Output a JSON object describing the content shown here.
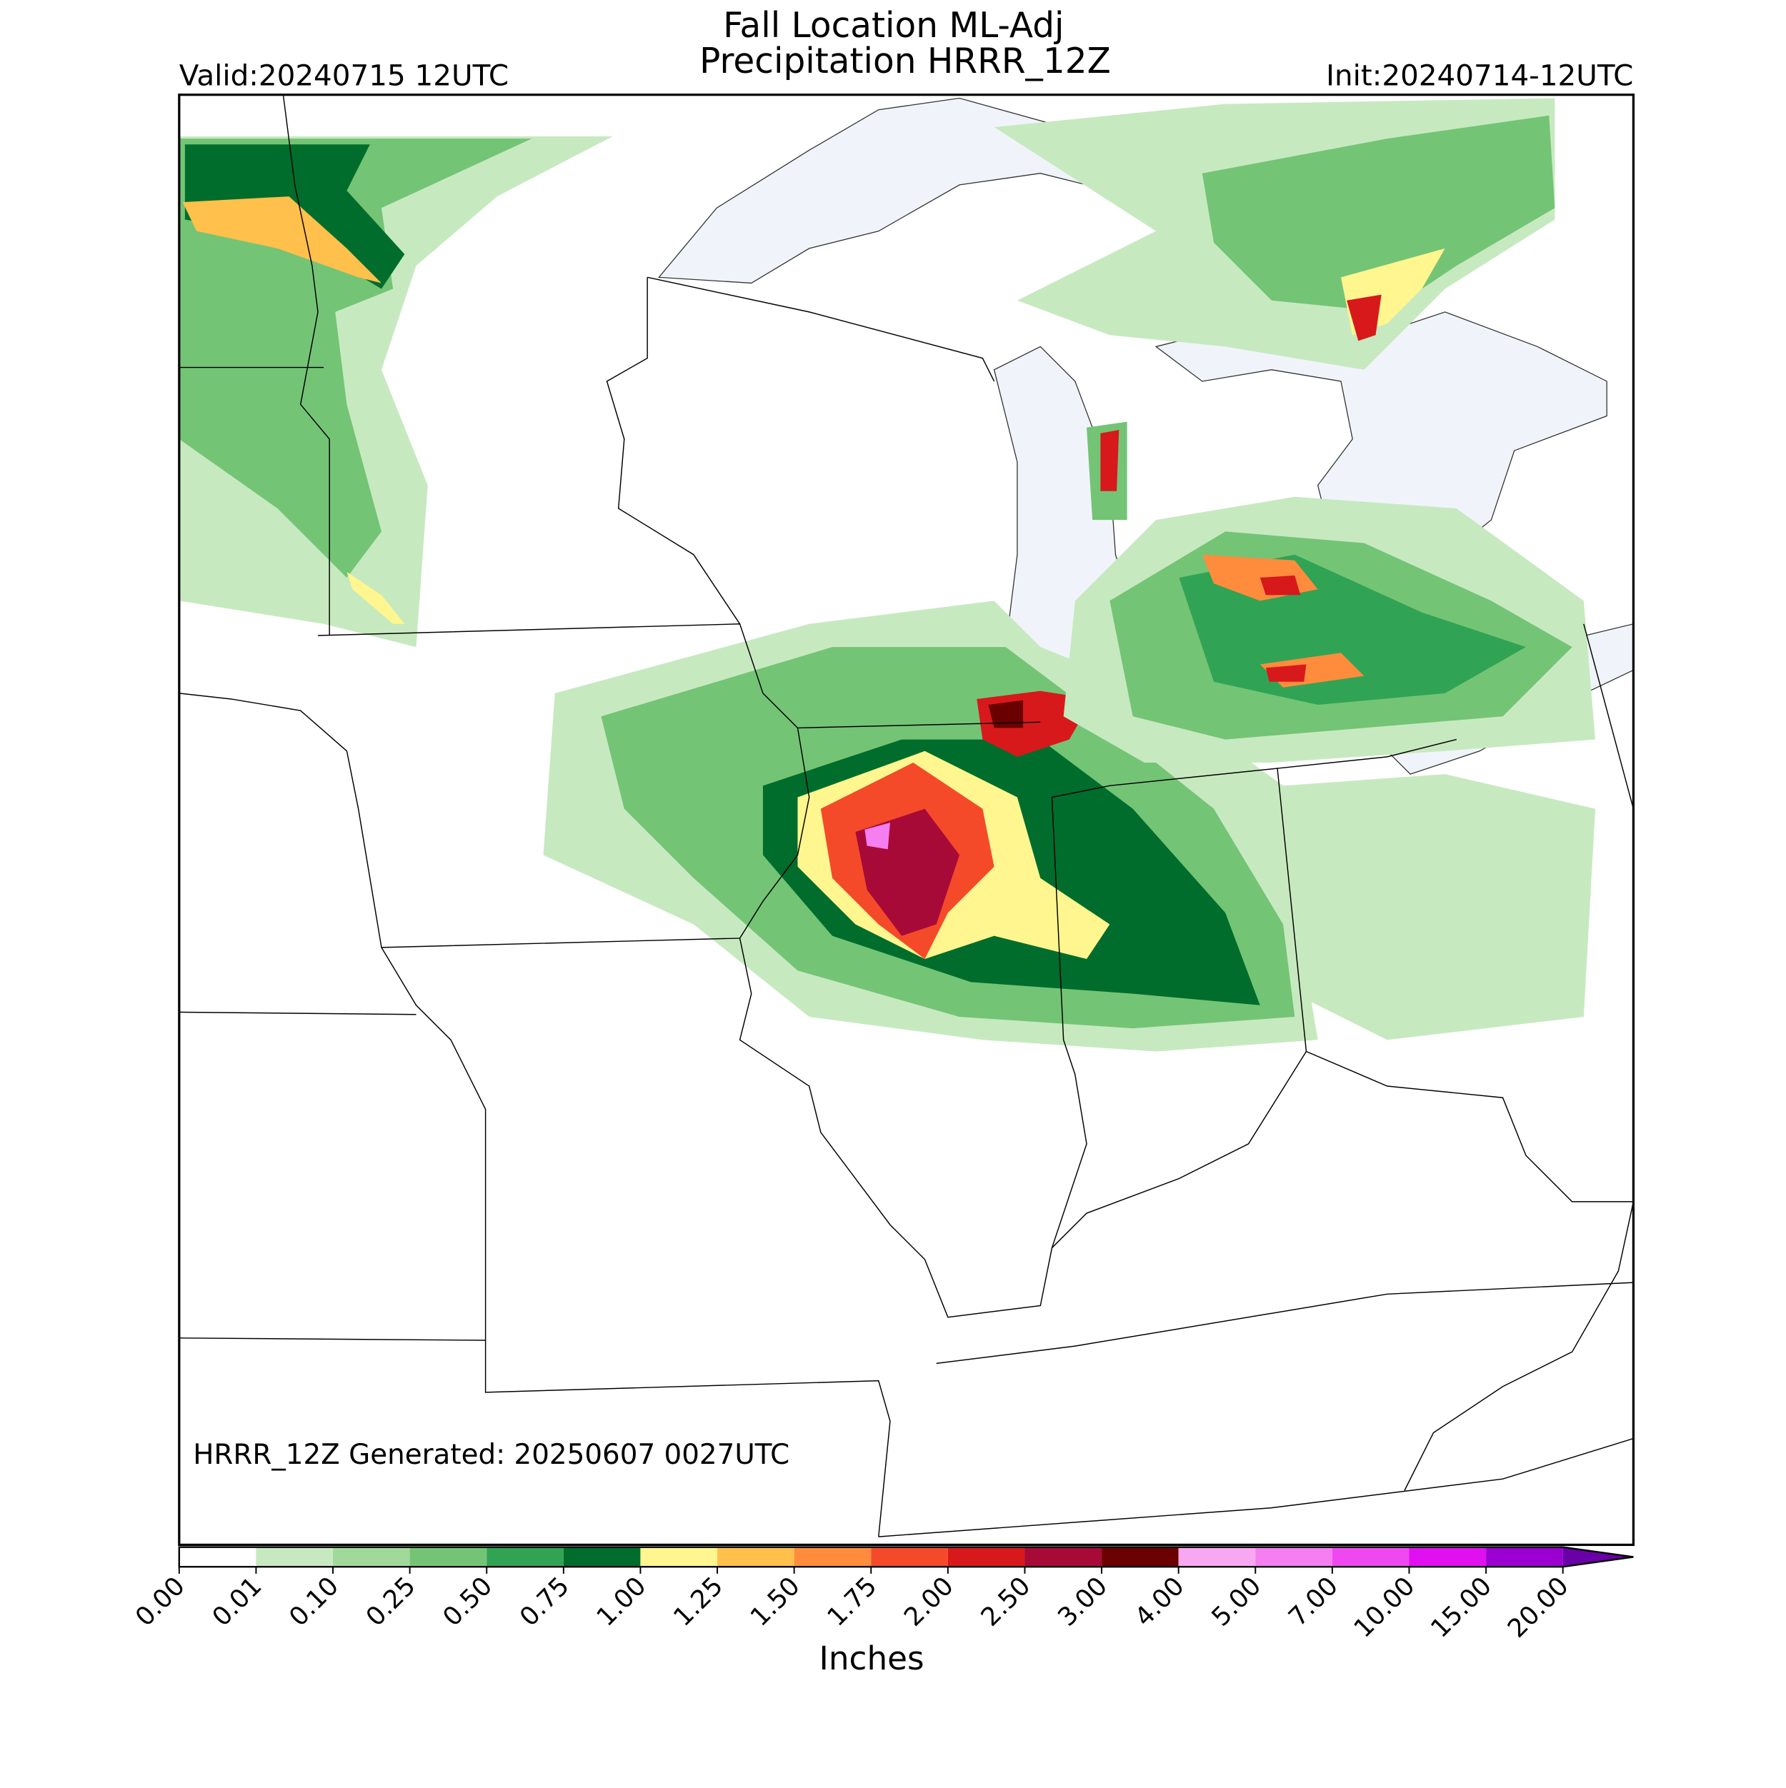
{
  "title_line1": "Fall Location ML-Adj",
  "title_line2": "Precipitation HRRR_12Z",
  "valid": "Valid:20240715 12UTC",
  "init": "Init:20240714-12UTC",
  "generated": "HRRR_12Z Generated: 20250607 0027UTC",
  "colorbar": {
    "label": "Inches",
    "ticks": [
      {
        "value": 0,
        "label": "0.00"
      },
      {
        "value": 0.01,
        "label": "0.01"
      },
      {
        "value": 0.1,
        "label": "0.10"
      },
      {
        "value": 0.25,
        "label": "0.25"
      },
      {
        "value": 0.5,
        "label": "0.50"
      },
      {
        "value": 0.75,
        "label": "0.75"
      },
      {
        "value": 1,
        "label": "1.00"
      },
      {
        "value": 1.25,
        "label": "1.25"
      },
      {
        "value": 1.5,
        "label": "1.50"
      },
      {
        "value": 1.75,
        "label": "1.75"
      },
      {
        "value": 2,
        "label": "2.00"
      },
      {
        "value": 2.5,
        "label": "2.50"
      },
      {
        "value": 3,
        "label": "3.00"
      },
      {
        "value": 4,
        "label": "4.00"
      },
      {
        "value": 5,
        "label": "5.00"
      },
      {
        "value": 7,
        "label": "7.00"
      },
      {
        "value": 10,
        "label": "10.00"
      },
      {
        "value": 15,
        "label": "15.00"
      },
      {
        "value": 20,
        "label": "20.00"
      }
    ],
    "colors": [
      "#ffffff",
      "#c7e9c0",
      "#a1d99b",
      "#74c476",
      "#31a354",
      "#006d2c",
      "#fff68f",
      "#ffc04c",
      "#ff8c3c",
      "#f44a2a",
      "#d7191c",
      "#a80a38",
      "#6b0000",
      "#f7a8f0",
      "#f57ef0",
      "#f048f0",
      "#e010f0",
      "#9a00d0"
    ],
    "over_color": "#6a00a8"
  }
}
